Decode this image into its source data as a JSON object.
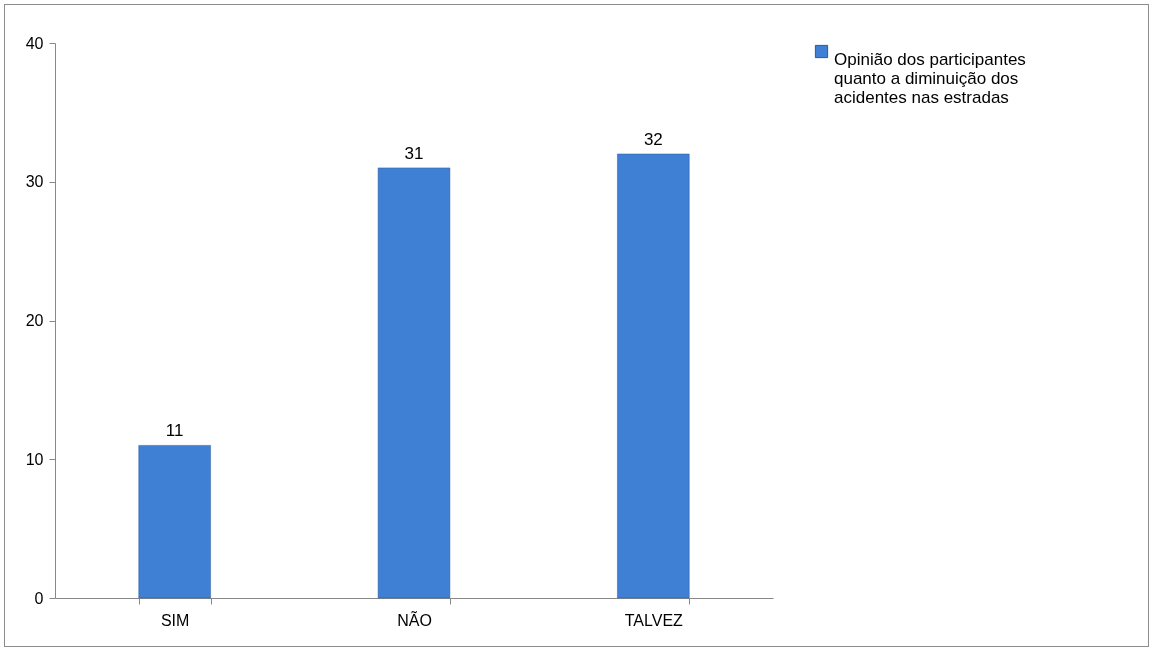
{
  "chart_data": {
    "type": "bar",
    "categories": [
      "SIM",
      "NÃO",
      "TALVEZ"
    ],
    "series": [
      {
        "name": "Opinião dos participantes quanto a diminuição  dos acidentes nas estradas",
        "color": "#3f7fd4",
        "values": [
          11,
          31,
          32
        ]
      }
    ],
    "ylim": [
      0,
      40
    ],
    "yticks": [
      0,
      10,
      20,
      30,
      40
    ],
    "grid": false,
    "legend": "right",
    "data_labels": true
  }
}
